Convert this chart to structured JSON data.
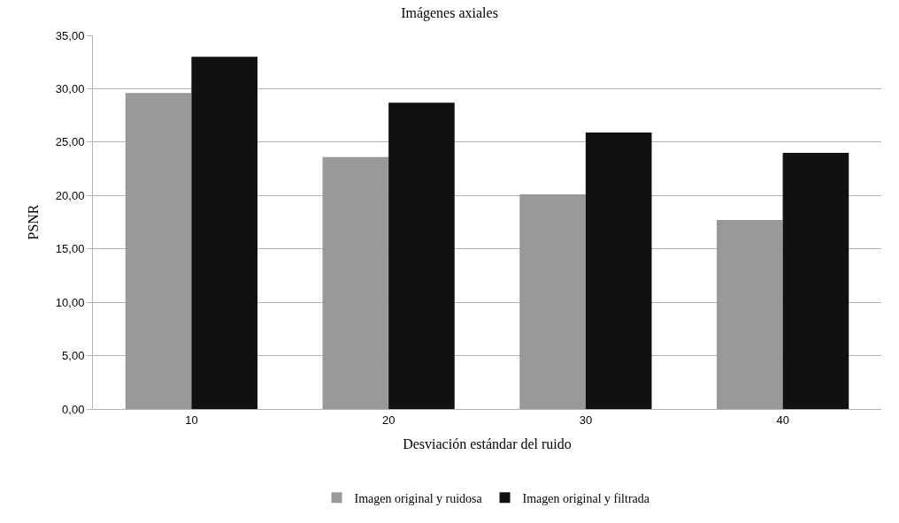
{
  "chart_data": {
    "type": "bar",
    "title": "Imágenes axiales",
    "xlabel": "Desviación estándar del ruido",
    "ylabel": "PSNR",
    "categories": [
      "10",
      "20",
      "30",
      "40"
    ],
    "series": [
      {
        "name": "Imagen original y ruidosa",
        "color": "#999999",
        "values": [
          29.6,
          23.6,
          20.1,
          17.7
        ]
      },
      {
        "name": "Imagen original y filtrada",
        "color": "#111111",
        "values": [
          33.0,
          28.7,
          25.9,
          24.0
        ]
      }
    ],
    "ylim": [
      0,
      35
    ],
    "yticks": [
      {
        "value": 0,
        "label": "0,00"
      },
      {
        "value": 5,
        "label": "5,00"
      },
      {
        "value": 10,
        "label": "10,00"
      },
      {
        "value": 15,
        "label": "15,00"
      },
      {
        "value": 20,
        "label": "20,00"
      },
      {
        "value": 25,
        "label": "25,00"
      },
      {
        "value": 30,
        "label": "30,00"
      },
      {
        "value": 35,
        "label": "35,00"
      }
    ],
    "grid": "y",
    "legend": "bottom"
  }
}
